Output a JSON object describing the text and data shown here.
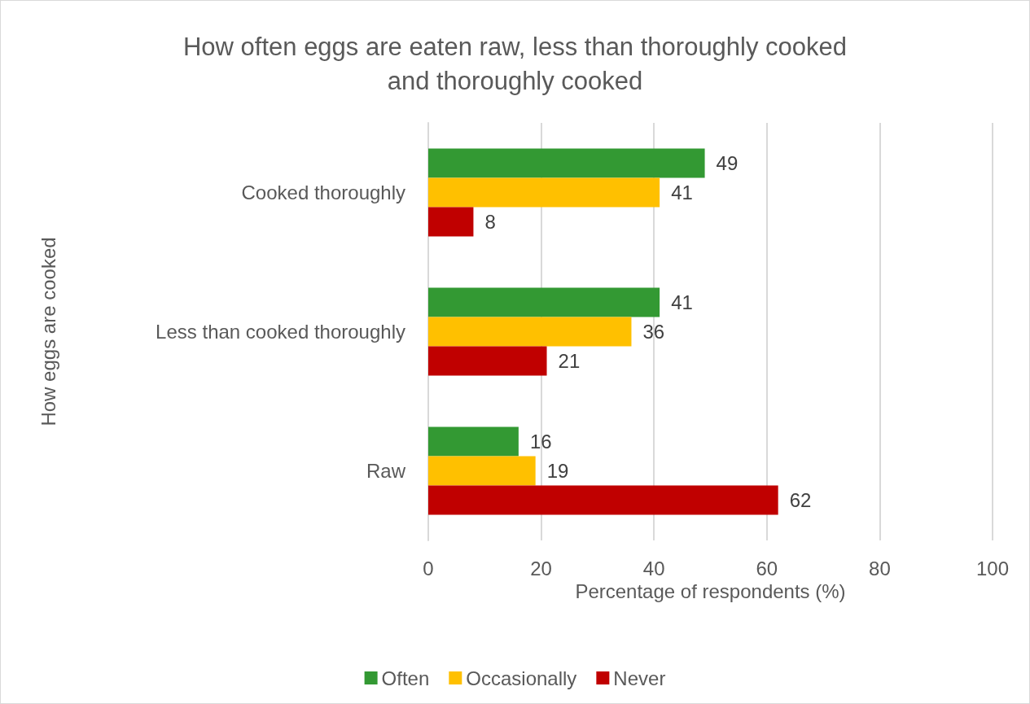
{
  "chart_data": {
    "type": "bar",
    "orientation": "horizontal",
    "title": "How often eggs are eaten raw, less than thoroughly cooked\nand thoroughly cooked",
    "xlabel": "Percentage of respondents (%)",
    "ylabel": "How eggs are cooked",
    "categories": [
      "Cooked thoroughly",
      "Less than cooked thoroughly",
      "Raw"
    ],
    "series": [
      {
        "name": "Often",
        "color": "#339933",
        "values": [
          49,
          41,
          16
        ]
      },
      {
        "name": "Occasionally",
        "color": "#ffc000",
        "values": [
          41,
          36,
          19
        ]
      },
      {
        "name": "Never",
        "color": "#c00000",
        "values": [
          8,
          21,
          62
        ]
      }
    ],
    "xlim": [
      0,
      100
    ],
    "xticks": [
      0,
      20,
      40,
      60,
      80,
      100
    ],
    "grid": "x",
    "legend": "bottom",
    "data_labels": true
  }
}
